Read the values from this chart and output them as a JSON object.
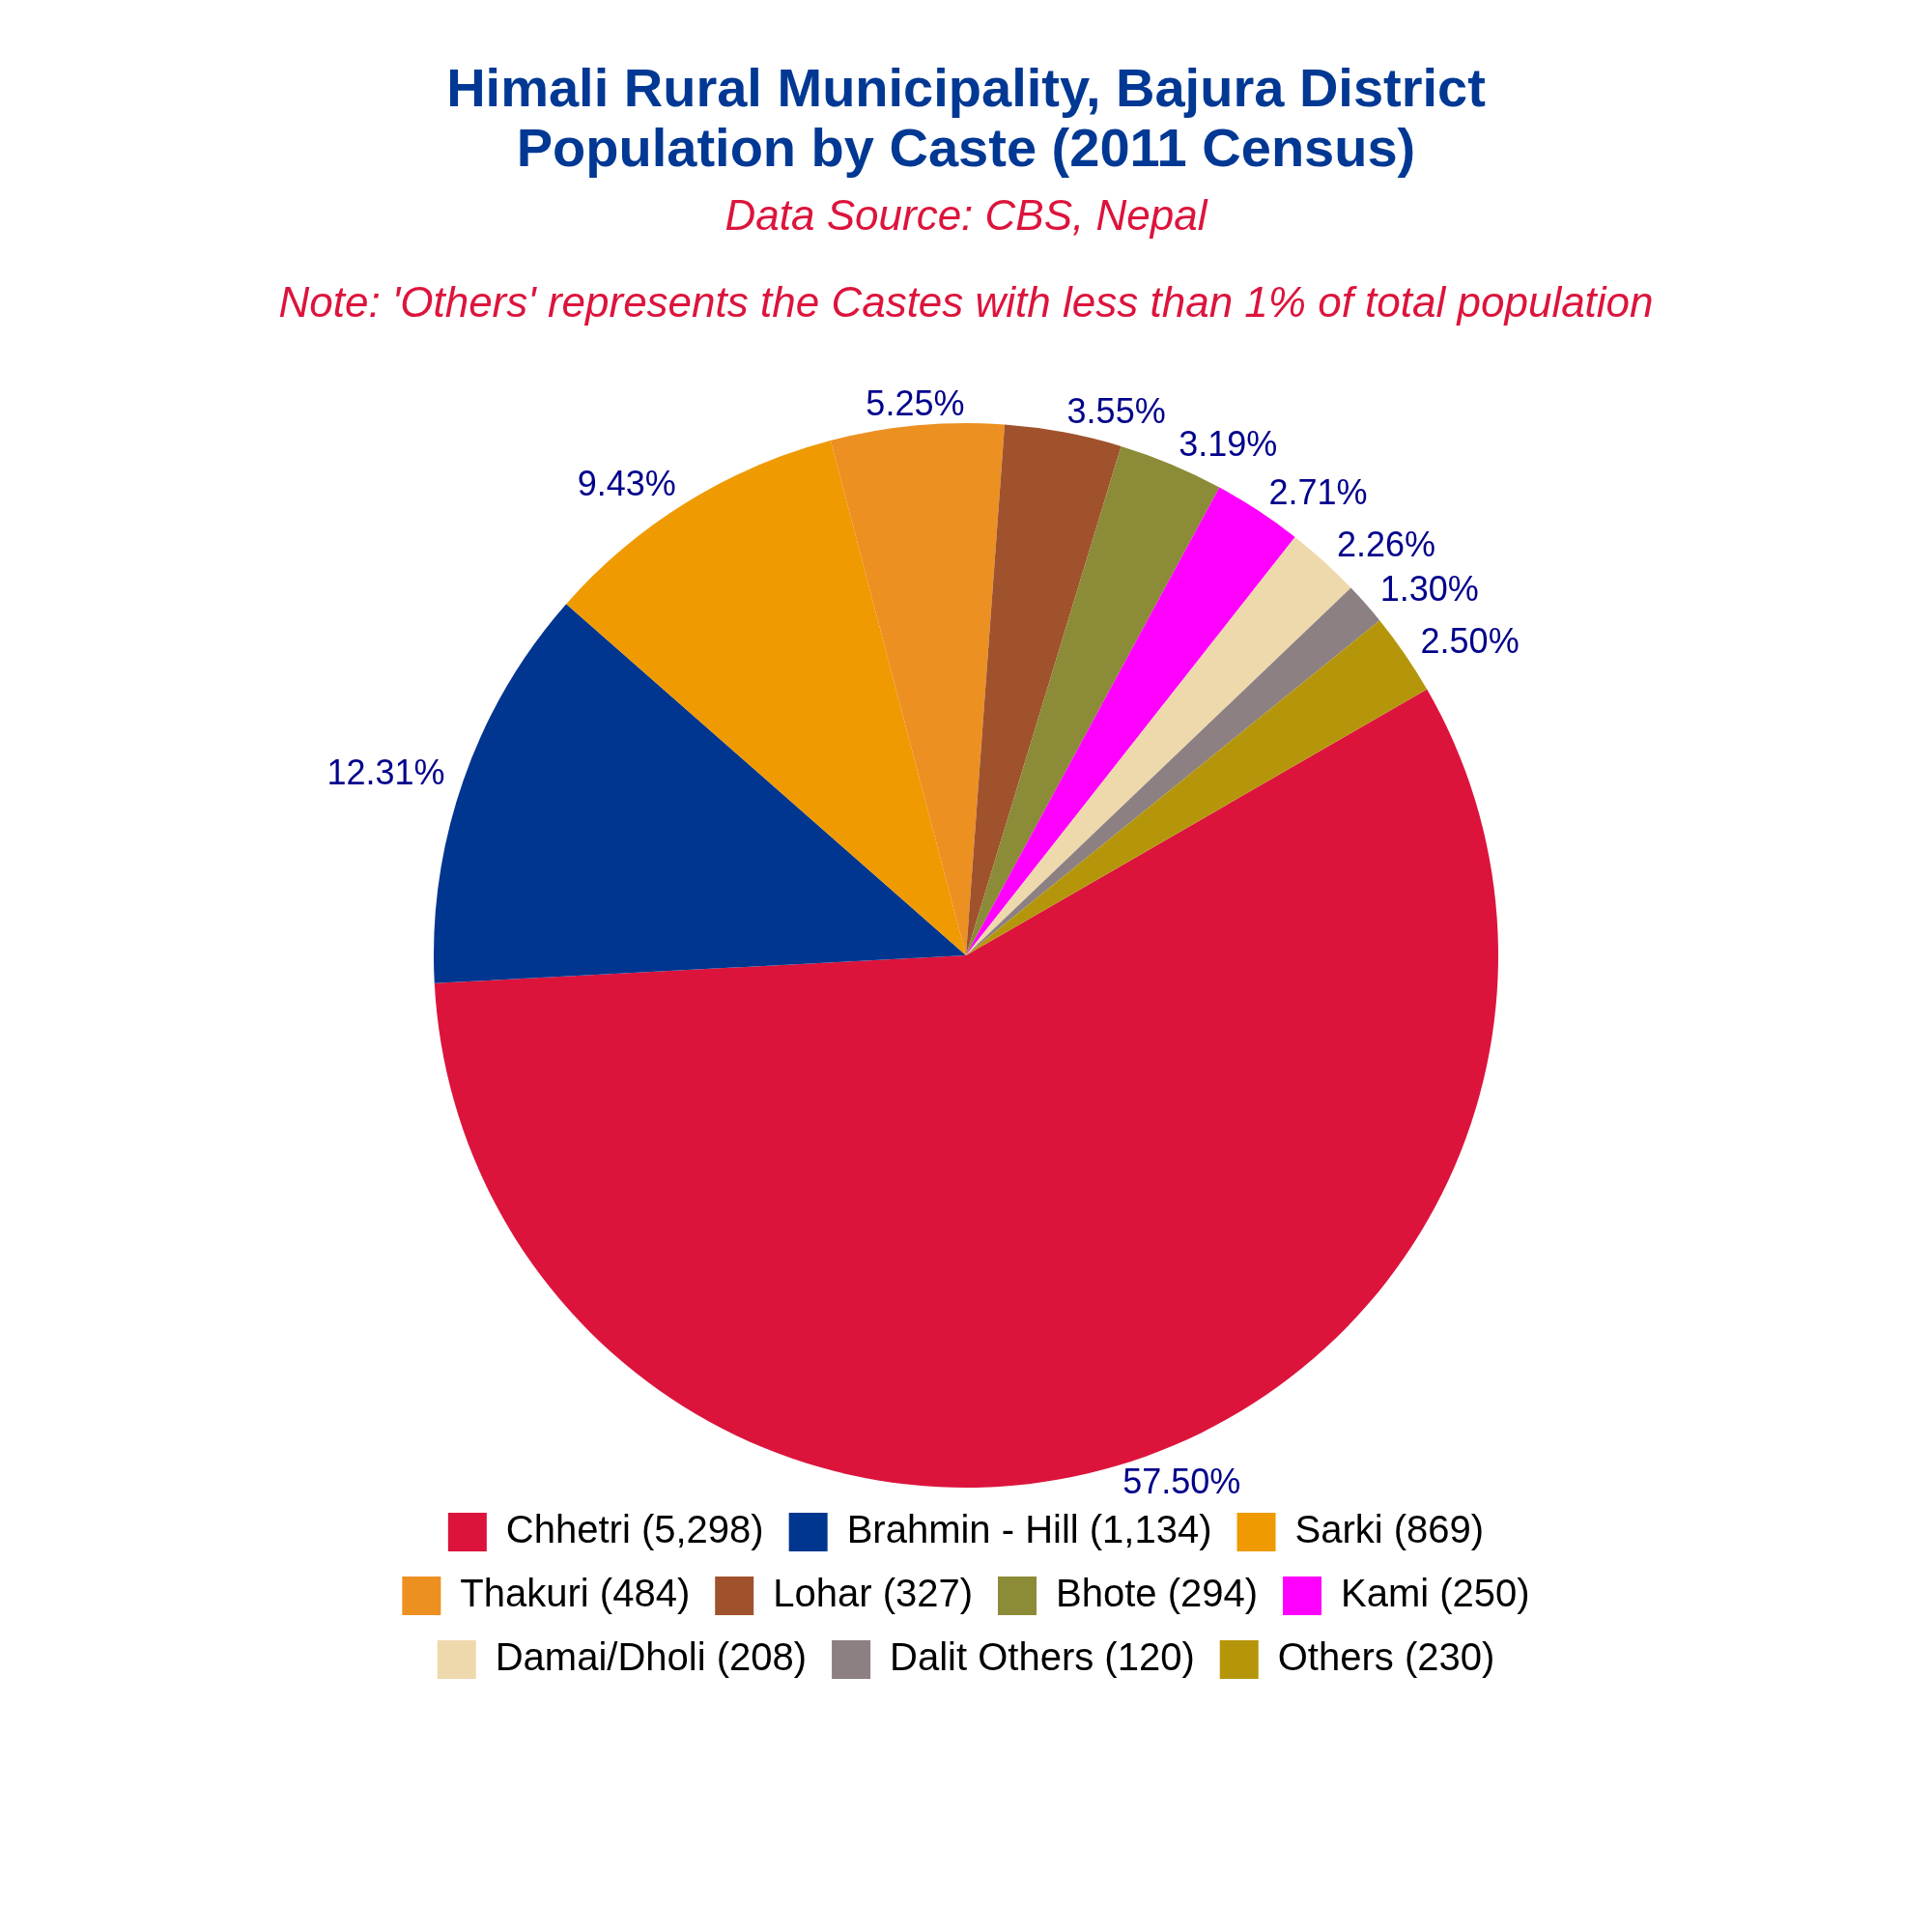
{
  "chart_data": {
    "type": "pie",
    "title": "Himali Rural Municipality, Bajura District\nPopulation by Caste (2011 Census)",
    "subtitle": "Data Source: CBS, Nepal",
    "annotations": [
      "Note: 'Others' represents the Castes with less than 1% of total population"
    ],
    "categories": [
      "Chhetri (5,298)",
      "Brahmin - Hill (1,134)",
      "Sarki (869)",
      "Thakuri (484)",
      "Lohar (327)",
      "Bhote (294)",
      "Kami (250)",
      "Damai/Dholi (208)",
      "Dalit Others (120)",
      "Others (230)"
    ],
    "values": [
      57.5,
      12.31,
      9.43,
      5.25,
      3.55,
      3.19,
      2.71,
      2.26,
      1.3,
      2.5
    ],
    "colors": [
      "#dc143c",
      "#00368f",
      "#ef9a00",
      "#ec9022",
      "#a0522d",
      "#8b8b38",
      "#ff00ff",
      "#eed9ad",
      "#8c8083",
      "#b5960b"
    ],
    "value_labels": [
      "57.50%",
      "12.31%",
      "9.43%",
      "5.25%",
      "3.55%",
      "3.19%",
      "2.71%",
      "2.26%",
      "1.30%",
      "2.50%"
    ],
    "legend": "bottom"
  }
}
